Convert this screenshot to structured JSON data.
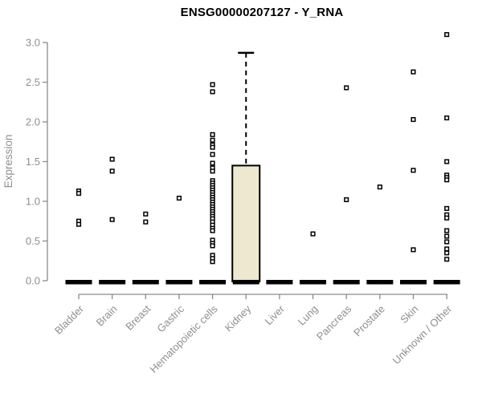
{
  "page": {
    "title_label": "ENSG00000207127 - Y_RNA"
  },
  "colors": {
    "background": "#ffffff",
    "title_text": "#000000",
    "axis_line": "#8a8a8a",
    "axis_text": "#8f8f8f",
    "box_fill": "#ede8cf",
    "box_border": "#000000",
    "zero_bar": "#000000",
    "outlier_stroke": "#000000",
    "outlier_fill": "#ffffff"
  },
  "chart_data": {
    "type": "boxplot",
    "title": "ENSG00000207127 - Y_RNA",
    "xlabel": "",
    "ylabel": "Expression",
    "ylim": [
      0.0,
      3.0
    ],
    "yticks": [
      0.0,
      0.5,
      1.0,
      1.5,
      2.0,
      2.5,
      3.0
    ],
    "grid": false,
    "legend": null,
    "categories": [
      "Bladder",
      "Brain",
      "Breast",
      "Gastric",
      "Hematopoietic cells",
      "Kidney",
      "Liver",
      "Lung",
      "Pancreas",
      "Prostate",
      "Skin",
      "Unknown / Other"
    ],
    "boxes": [
      {
        "category": "Bladder",
        "median": 0,
        "q1": 0,
        "q3": 0,
        "whisker_low": 0,
        "whisker_high": 0,
        "outliers": [
          1.13,
          1.1,
          0.75,
          0.71
        ]
      },
      {
        "category": "Brain",
        "median": 0,
        "q1": 0,
        "q3": 0,
        "whisker_low": 0,
        "whisker_high": 0,
        "outliers": [
          1.53,
          1.38,
          0.77
        ]
      },
      {
        "category": "Breast",
        "median": 0,
        "q1": 0,
        "q3": 0,
        "whisker_low": 0,
        "whisker_high": 0,
        "outliers": [
          0.84,
          0.74
        ]
      },
      {
        "category": "Gastric",
        "median": 0,
        "q1": 0,
        "q3": 0,
        "whisker_low": 0,
        "whisker_high": 0,
        "outliers": [
          1.04
        ]
      },
      {
        "category": "Hematopoietic cells",
        "median": 0,
        "q1": 0,
        "q3": 0,
        "whisker_low": 0,
        "whisker_high": 0,
        "outliers": [
          2.47,
          2.38,
          1.84,
          1.77,
          1.71,
          1.68,
          1.59,
          1.48,
          1.42,
          1.38,
          1.26,
          1.23,
          1.2,
          1.17,
          1.14,
          1.11,
          1.08,
          1.05,
          1.02,
          0.99,
          0.96,
          0.93,
          0.9,
          0.87,
          0.84,
          0.81,
          0.78,
          0.74,
          0.7,
          0.66,
          0.63,
          0.51,
          0.47,
          0.44,
          0.32,
          0.28,
          0.24
        ]
      },
      {
        "category": "Kidney",
        "median": 0,
        "q1": 0,
        "q3": 1.45,
        "whisker_low": 0,
        "whisker_high": 2.87,
        "outliers": []
      },
      {
        "category": "Liver",
        "median": 0,
        "q1": 0,
        "q3": 0,
        "whisker_low": 0,
        "whisker_high": 0,
        "outliers": []
      },
      {
        "category": "Lung",
        "median": 0,
        "q1": 0,
        "q3": 0,
        "whisker_low": 0,
        "whisker_high": 0,
        "outliers": [
          0.59
        ]
      },
      {
        "category": "Pancreas",
        "median": 0,
        "q1": 0,
        "q3": 0,
        "whisker_low": 0,
        "whisker_high": 0,
        "outliers": [
          2.43,
          1.02
        ]
      },
      {
        "category": "Prostate",
        "median": 0,
        "q1": 0,
        "q3": 0,
        "whisker_low": 0,
        "whisker_high": 0,
        "outliers": [
          1.18
        ]
      },
      {
        "category": "Skin",
        "median": 0,
        "q1": 0,
        "q3": 0,
        "whisker_low": 0,
        "whisker_high": 0,
        "outliers": [
          2.63,
          2.03,
          1.39,
          0.39
        ]
      },
      {
        "category": "Unknown / Other",
        "median": 0,
        "q1": 0,
        "q3": 0,
        "whisker_low": 0,
        "whisker_high": 0,
        "outliers": [
          3.1,
          2.05,
          1.5,
          1.33,
          1.3,
          1.27,
          0.91,
          0.83,
          0.79,
          0.63,
          0.56,
          0.49,
          0.4,
          0.35,
          0.27
        ]
      }
    ]
  }
}
